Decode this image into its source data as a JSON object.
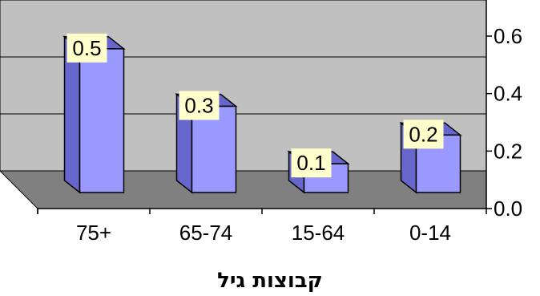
{
  "chart_data": {
    "type": "bar",
    "categories": [
      "0-14",
      "15-64",
      "65-74",
      "75+"
    ],
    "values": [
      0.2,
      0.1,
      0.3,
      0.5
    ],
    "data_labels": [
      "0.2",
      "0.1",
      "0.3",
      "0.5"
    ],
    "xlabel": "קבוצות גיל",
    "ylabel": "",
    "ylim": [
      0,
      0.6
    ],
    "yticks": [
      "0.0",
      "0.2",
      "0.4",
      "0.6"
    ],
    "x_axis_direction": "right-to-left",
    "y_axis_position": "right",
    "grid": true,
    "style": "3d-column",
    "colors": {
      "bar_front": "#9999ff",
      "bar_side": "#6666cc",
      "wall": "#c0c0c0",
      "floor": "#808080",
      "label_box": "#ffffcc"
    }
  }
}
